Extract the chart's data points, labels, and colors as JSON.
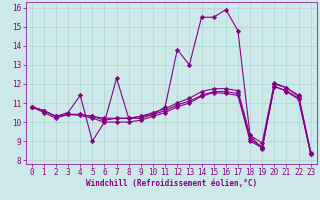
{
  "xlabel": "Windchill (Refroidissement éolien,°C)",
  "background_color": "#cce8e8",
  "line_color": "#880088",
  "xlim": [
    -0.5,
    23.5
  ],
  "ylim": [
    7.8,
    16.3
  ],
  "xticks": [
    0,
    1,
    2,
    3,
    4,
    5,
    6,
    7,
    8,
    9,
    10,
    11,
    12,
    13,
    14,
    15,
    16,
    17,
    18,
    19,
    20,
    21,
    22,
    23
  ],
  "yticks": [
    8,
    9,
    10,
    11,
    12,
    13,
    14,
    15,
    16
  ],
  "series": [
    {
      "x": [
        0,
        1,
        2,
        3,
        4,
        5,
        6,
        7,
        8,
        9,
        10,
        11,
        12,
        13,
        14,
        15,
        16,
        17,
        18,
        19,
        20,
        21,
        22,
        23
      ],
      "y": [
        10.8,
        10.6,
        10.3,
        10.5,
        11.4,
        9.0,
        10.0,
        12.3,
        10.2,
        10.3,
        10.4,
        10.8,
        13.8,
        13.0,
        15.5,
        15.5,
        15.9,
        14.8,
        9.3,
        8.6,
        12.0,
        11.8,
        11.4,
        8.4
      ]
    },
    {
      "x": [
        0,
        1,
        2,
        3,
        4,
        5,
        6,
        7,
        8,
        9,
        10,
        11,
        12,
        13,
        14,
        15,
        16,
        17,
        18,
        19,
        20,
        21,
        22,
        23
      ],
      "y": [
        10.8,
        10.6,
        10.3,
        10.4,
        10.4,
        10.3,
        10.1,
        10.2,
        10.2,
        10.2,
        10.4,
        10.6,
        10.9,
        11.1,
        11.4,
        11.6,
        11.6,
        11.5,
        9.1,
        8.7,
        11.85,
        11.65,
        11.25,
        8.35
      ]
    },
    {
      "x": [
        0,
        1,
        2,
        3,
        4,
        5,
        6,
        7,
        8,
        9,
        10,
        11,
        12,
        13,
        14,
        15,
        16,
        17,
        18,
        19,
        20,
        21,
        22,
        23
      ],
      "y": [
        10.8,
        10.6,
        10.3,
        10.4,
        10.4,
        10.3,
        10.2,
        10.2,
        10.2,
        10.3,
        10.5,
        10.7,
        11.0,
        11.25,
        11.6,
        11.75,
        11.75,
        11.65,
        9.3,
        8.9,
        12.05,
        11.8,
        11.35,
        8.4
      ]
    },
    {
      "x": [
        0,
        1,
        2,
        3,
        4,
        5,
        6,
        7,
        8,
        9,
        10,
        11,
        12,
        13,
        14,
        15,
        16,
        17,
        18,
        19,
        20,
        21,
        22,
        23
      ],
      "y": [
        10.8,
        10.5,
        10.2,
        10.4,
        10.35,
        10.2,
        10.0,
        10.0,
        10.0,
        10.1,
        10.3,
        10.5,
        10.8,
        11.0,
        11.35,
        11.55,
        11.5,
        11.4,
        9.0,
        8.65,
        11.9,
        11.6,
        11.2,
        8.3
      ]
    }
  ],
  "marker": "D",
  "markersize": 2.2,
  "linewidth": 0.8,
  "grid_color": "#aacccc",
  "tick_color": "#880088",
  "label_color": "#880088",
  "tick_fontsize": 5.5,
  "xlabel_fontsize": 5.5
}
